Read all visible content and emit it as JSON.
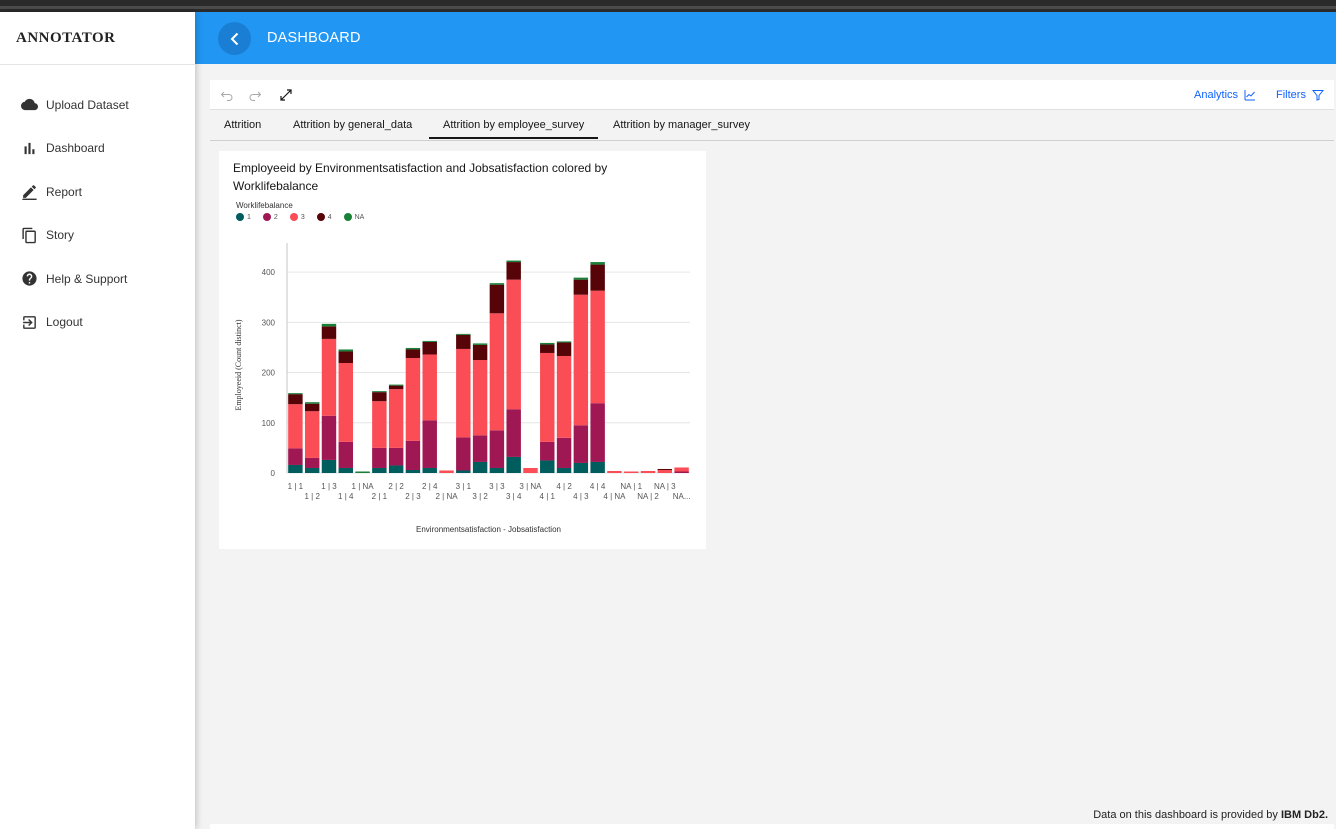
{
  "app": {
    "title": "ANNOTATOR"
  },
  "sidebar": {
    "items": [
      {
        "label": "Upload Dataset",
        "icon": "cloud-icon"
      },
      {
        "label": "Dashboard",
        "icon": "bar-chart-icon"
      },
      {
        "label": "Report",
        "icon": "pencil-icon"
      },
      {
        "label": "Story",
        "icon": "copy-icon"
      },
      {
        "label": "Help & Support",
        "icon": "help-icon"
      },
      {
        "label": "Logout",
        "icon": "logout-icon"
      }
    ]
  },
  "header": {
    "title": "DASHBOARD",
    "color": "#2196f3"
  },
  "toolbar": {
    "analytics_label": "Analytics",
    "filters_label": "Filters"
  },
  "tabs": [
    {
      "label": "Attrition",
      "active": false
    },
    {
      "label": "Attrition by general_data",
      "active": false
    },
    {
      "label": "Attrition by employee_survey",
      "active": true
    },
    {
      "label": "Attrition by manager_survey",
      "active": false
    }
  ],
  "chart_card": {
    "title": "Employeeid by Environmentsatisfaction and Jobsatisfaction colored by Worklifebalance"
  },
  "chart_data": {
    "type": "bar",
    "stacked": true,
    "title": "Employeeid by Environmentsatisfaction and Jobsatisfaction colored by Worklifebalance",
    "xlabel": "Environmentsatisfaction - Jobsatisfaction",
    "ylabel": "Employeeid (Count distinct)",
    "legend_title": "Worklifebalance",
    "legend_position": "top-left",
    "ylim": [
      0,
      450
    ],
    "yticks": [
      "0",
      "100",
      "200",
      "300",
      "400"
    ],
    "grid": true,
    "categories": [
      "1 | 1",
      "1 | 2",
      "1 | 3",
      "1 | 4",
      "1 | NA",
      "2 | 1",
      "2 | 2",
      "2 | 3",
      "2 | 4",
      "2 | NA",
      "3 | 1",
      "3 | 2",
      "3 | 3",
      "3 | 4",
      "3 | NA",
      "4 | 1",
      "4 | 2",
      "4 | 3",
      "4 | 4",
      "4 | NA",
      "NA | 1",
      "NA | 2",
      "NA | 3",
      "NA..."
    ],
    "series": [
      {
        "name": "1",
        "color": "#005d5d",
        "values": [
          16,
          10,
          26,
          10,
          0,
          10,
          15,
          6,
          10,
          0,
          5,
          22,
          10,
          32,
          0,
          25,
          10,
          20,
          22,
          0,
          0,
          0,
          0,
          0
        ]
      },
      {
        "name": "2",
        "color": "#9f1853",
        "values": [
          33,
          20,
          88,
          52,
          0,
          40,
          35,
          58,
          95,
          0,
          66,
          53,
          75,
          95,
          0,
          37,
          60,
          75,
          117,
          0,
          0,
          0,
          0,
          3
        ]
      },
      {
        "name": "3",
        "color": "#fa4d56",
        "values": [
          88,
          93,
          153,
          157,
          0,
          93,
          117,
          165,
          131,
          5,
          176,
          150,
          233,
          258,
          10,
          177,
          163,
          260,
          224,
          4,
          3,
          4,
          6,
          8
        ]
      },
      {
        "name": "4",
        "color": "#570408",
        "values": [
          20,
          15,
          25,
          23,
          0,
          18,
          7,
          17,
          25,
          0,
          28,
          30,
          57,
          35,
          0,
          17,
          27,
          30,
          52,
          0,
          0,
          0,
          2,
          0
        ]
      },
      {
        "name": "NA",
        "color": "#198038",
        "values": [
          2,
          3,
          5,
          4,
          3,
          2,
          2,
          3,
          2,
          0,
          2,
          3,
          3,
          3,
          0,
          3,
          2,
          4,
          5,
          0,
          0,
          0,
          0,
          0
        ]
      }
    ]
  },
  "footer": {
    "prefix": "Data on this dashboard is provided by ",
    "brand": "IBM Db2."
  }
}
